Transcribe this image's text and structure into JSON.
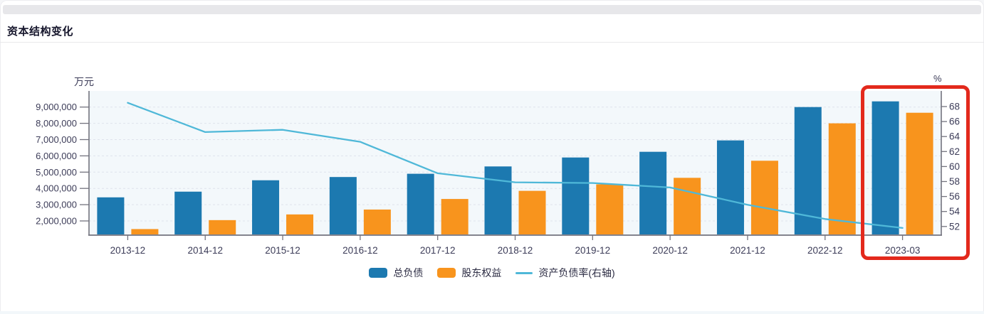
{
  "page": {
    "title": "资本结构变化"
  },
  "highlight": {
    "target_category": "2023-03",
    "color": "#e3291c"
  },
  "chart_data": {
    "type": "combo-bar-line",
    "categories": [
      "2013-12",
      "2014-12",
      "2015-12",
      "2016-12",
      "2017-12",
      "2018-12",
      "2019-12",
      "2020-12",
      "2021-12",
      "2022-12",
      "2023-03"
    ],
    "series": [
      {
        "name": "总负债",
        "type": "bar",
        "axis": "left",
        "color": "#1c79b0",
        "values": [
          3450000,
          3800000,
          4500000,
          4700000,
          4900000,
          5350000,
          5900000,
          6250000,
          6950000,
          9000000,
          9350000
        ]
      },
      {
        "name": "股东权益",
        "type": "bar",
        "axis": "left",
        "color": "#f8941d",
        "values": [
          1500000,
          2050000,
          2400000,
          2700000,
          3350000,
          3850000,
          4250000,
          4650000,
          5700000,
          8000000,
          8650000
        ]
      },
      {
        "name": "资产负债率(右轴)",
        "type": "line",
        "axis": "right",
        "color": "#4fb8d8",
        "values": [
          68.5,
          64.6,
          64.9,
          63.3,
          59.1,
          57.9,
          57.8,
          57.2,
          54.9,
          53.0,
          51.8
        ]
      }
    ],
    "left_axis": {
      "title": "万元",
      "ticks": [
        9000000,
        8000000,
        7000000,
        6000000,
        5000000,
        4000000,
        3000000,
        2000000
      ],
      "min": 1150000,
      "max": 9500000
    },
    "right_axis": {
      "title": "%",
      "ticks": [
        68,
        66,
        64,
        62,
        60,
        58,
        56,
        54,
        52
      ],
      "min": 51.5,
      "max": 68.6
    },
    "grid": "horizontal-dashed",
    "legend_position": "bottom-center"
  }
}
